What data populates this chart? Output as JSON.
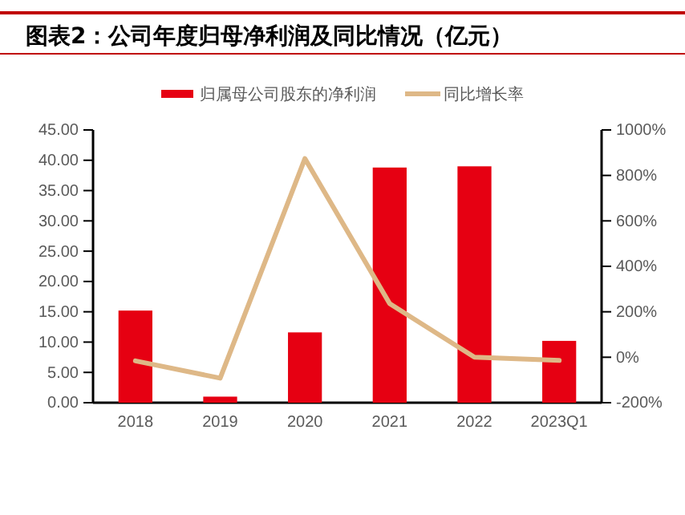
{
  "chart_data": {
    "type": "bar",
    "title": "图表2：公司年度归母净利润及同比情况（亿元）",
    "categories": [
      "2018",
      "2019",
      "2020",
      "2021",
      "2022",
      "2023Q1"
    ],
    "series": [
      {
        "name": "归属母公司股东的净利润",
        "color": "#e60012",
        "values": [
          15.2,
          1.0,
          11.6,
          38.8,
          39.0,
          10.2
        ]
      },
      {
        "name": "同比增长率",
        "type": "line",
        "axis": "y2",
        "color": "#deb887",
        "values": [
          -16,
          -92,
          874,
          236,
          0,
          -14
        ]
      }
    ],
    "ylim": [
      0,
      45
    ],
    "yticks": [
      {
        "value": 0,
        "label": "0.00"
      },
      {
        "value": 5,
        "label": "5.00"
      },
      {
        "value": 10,
        "label": "10.00"
      },
      {
        "value": 15,
        "label": "15.00"
      },
      {
        "value": 20,
        "label": "20.00"
      },
      {
        "value": 25,
        "label": "25.00"
      },
      {
        "value": 30,
        "label": "30.00"
      },
      {
        "value": 35,
        "label": "35.00"
      },
      {
        "value": 40,
        "label": "40.00"
      },
      {
        "value": 45,
        "label": "45.00"
      }
    ],
    "y2lim": [
      -200,
      1000
    ],
    "y2ticks": [
      {
        "value": -200,
        "label": "-200%"
      },
      {
        "value": 0,
        "label": "0%"
      },
      {
        "value": 200,
        "label": "200%"
      },
      {
        "value": 400,
        "label": "400%"
      },
      {
        "value": 600,
        "label": "600%"
      },
      {
        "value": 800,
        "label": "800%"
      },
      {
        "value": 1000,
        "label": "1000%"
      }
    ],
    "legend": "top",
    "grid": false,
    "marker": "none",
    "line_style": "solid"
  }
}
